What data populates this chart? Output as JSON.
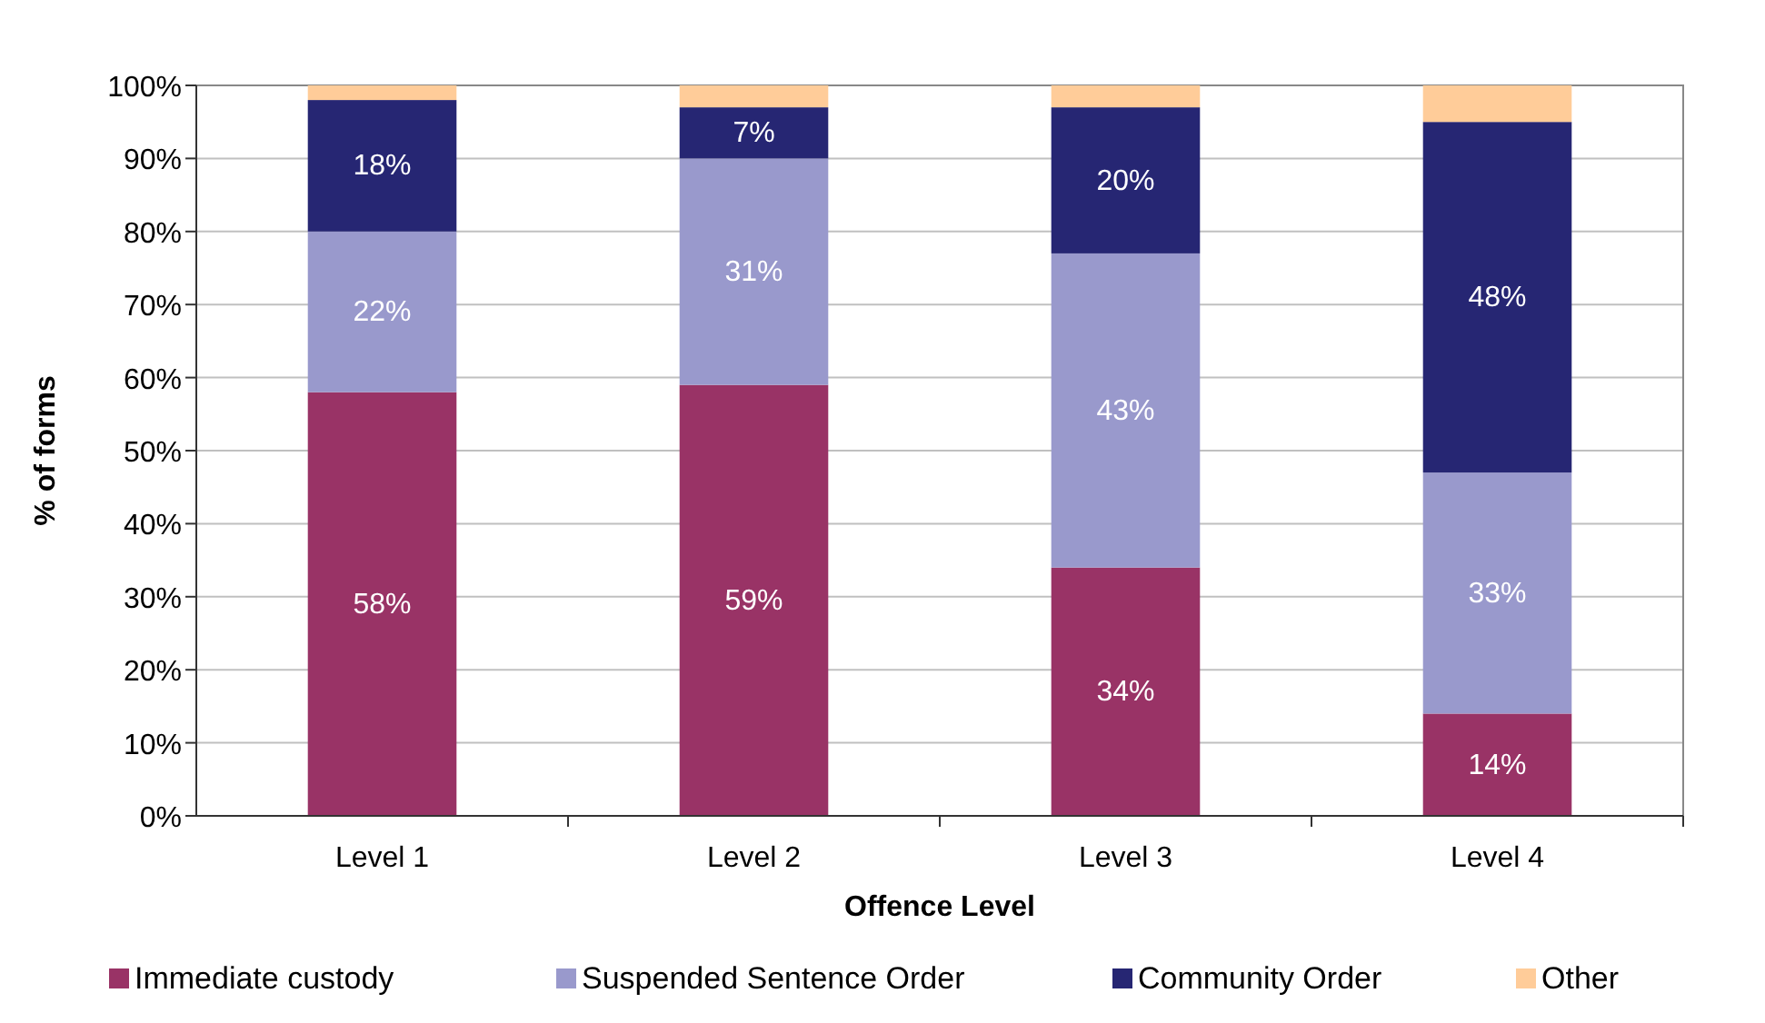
{
  "chart_data": {
    "type": "bar",
    "stacked": true,
    "xlabel": "Offence Level",
    "ylabel": "% of forms",
    "categories": [
      "Level 1",
      "Level 2",
      "Level 3",
      "Level 4"
    ],
    "series": [
      {
        "name": "Immediate custody",
        "color": "#993366",
        "values": [
          58,
          59,
          34,
          14
        ],
        "value_labels": [
          "58%",
          "59%",
          "34%",
          "14%"
        ]
      },
      {
        "name": "Suspended Sentence Order",
        "color": "#9999cc",
        "values": [
          22,
          31,
          43,
          33
        ],
        "value_labels": [
          "22%",
          "31%",
          "43%",
          "33%"
        ]
      },
      {
        "name": "Community Order",
        "color": "#262673",
        "values": [
          18,
          7,
          20,
          48
        ],
        "value_labels": [
          "18%",
          "7%",
          "20%",
          "48%"
        ]
      },
      {
        "name": "Other",
        "color": "#ffcc99",
        "values": [
          2,
          3,
          3,
          5
        ]
      }
    ],
    "ylim": [
      0,
      100
    ],
    "yticks": [
      {
        "value": 0,
        "label": "0%"
      },
      {
        "value": 10,
        "label": "10%"
      },
      {
        "value": 20,
        "label": "20%"
      },
      {
        "value": 30,
        "label": "30%"
      },
      {
        "value": 40,
        "label": "40%"
      },
      {
        "value": 50,
        "label": "50%"
      },
      {
        "value": 60,
        "label": "60%"
      },
      {
        "value": 70,
        "label": "70%"
      },
      {
        "value": 80,
        "label": "80%"
      },
      {
        "value": 90,
        "label": "90%"
      },
      {
        "value": 100,
        "label": "100%"
      }
    ],
    "grid": "y",
    "legend": "bottom"
  }
}
